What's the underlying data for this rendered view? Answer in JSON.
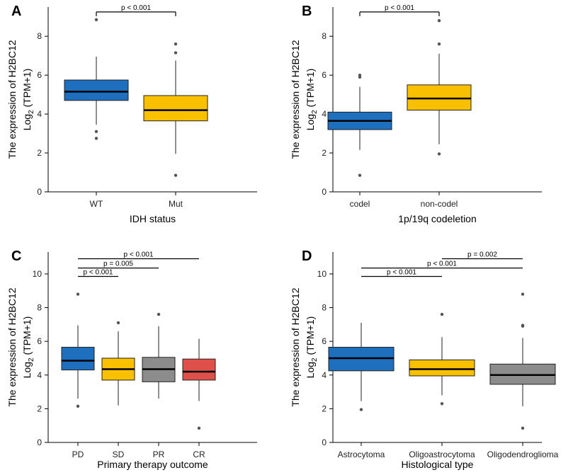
{
  "colors": {
    "blue": "#1f6fbf",
    "yellow": "#f9c000",
    "gray": "#8c8c8c",
    "red": "#e0504a",
    "axis": "#000000",
    "outlier": "#555555"
  },
  "chart_data": [
    {
      "type": "box",
      "panel": "A",
      "ylabel_line1": "The expression of H2BC12",
      "ylabel_base": "Log",
      "ylabel_sub": "2",
      "ylabel_rest": " (TPM+1)",
      "xlabel": "IDH status",
      "ylim": [
        0,
        9.5
      ],
      "yticks": [
        "0",
        "2",
        "4",
        "6",
        "8"
      ],
      "boxes": [
        {
          "name": "WT",
          "color": "blue",
          "q1": 4.7,
          "median": 5.15,
          "q3": 5.75,
          "whisker_low": 3.45,
          "whisker_high": 6.95,
          "outliers": [
            8.85,
            3.1,
            2.75
          ]
        },
        {
          "name": "Mut",
          "color": "yellow",
          "q1": 3.65,
          "median": 4.2,
          "q3": 4.95,
          "whisker_low": 1.95,
          "whisker_high": 6.75,
          "outliers": [
            7.6,
            7.15,
            0.85
          ]
        }
      ],
      "comparisons": [
        {
          "from": 0,
          "to": 1,
          "label": "p < 0.001",
          "y": 9.25
        }
      ]
    },
    {
      "type": "box",
      "panel": "B",
      "ylabel_line1": "The expression of H2BC12",
      "ylabel_base": "Log",
      "ylabel_sub": "2",
      "ylabel_rest": " (TPM+1)",
      "xlabel": "1p/19q codeletion",
      "ylim": [
        0,
        9.5
      ],
      "yticks": [
        "0",
        "2",
        "4",
        "6",
        "8"
      ],
      "boxes": [
        {
          "name": "codel",
          "color": "blue",
          "q1": 3.2,
          "median": 3.65,
          "q3": 4.1,
          "whisker_low": 2.15,
          "whisker_high": 5.4,
          "outliers": [
            6.0,
            5.9,
            0.85
          ]
        },
        {
          "name": "non-codel",
          "color": "yellow",
          "q1": 4.2,
          "median": 4.8,
          "q3": 5.5,
          "whisker_low": 2.45,
          "whisker_high": 7.1,
          "outliers": [
            8.8,
            7.6,
            1.95
          ]
        }
      ],
      "comparisons": [
        {
          "from": 0,
          "to": 1,
          "label": "p < 0.001",
          "y": 9.25
        }
      ]
    },
    {
      "type": "box",
      "panel": "C",
      "ylabel_line1": "The expression of H2BC12",
      "ylabel_base": "Log",
      "ylabel_sub": "2",
      "ylabel_rest": " (TPM+1)",
      "xlabel": "Primary therapy outcome",
      "ylim": [
        0,
        11.3
      ],
      "yticks": [
        "0",
        "2",
        "4",
        "6",
        "8",
        "10"
      ],
      "boxes": [
        {
          "name": "PD",
          "color": "blue",
          "q1": 4.3,
          "median": 4.85,
          "q3": 5.65,
          "whisker_low": 2.6,
          "whisker_high": 6.95,
          "outliers": [
            8.8,
            2.15
          ]
        },
        {
          "name": "SD",
          "color": "yellow",
          "q1": 3.7,
          "median": 4.35,
          "q3": 5.0,
          "whisker_low": 2.2,
          "whisker_high": 6.6,
          "outliers": [
            7.1
          ]
        },
        {
          "name": "PR",
          "color": "gray",
          "q1": 3.6,
          "median": 4.35,
          "q3": 5.05,
          "whisker_low": 2.6,
          "whisker_high": 6.9,
          "outliers": [
            7.6
          ]
        },
        {
          "name": "CR",
          "color": "red",
          "q1": 3.7,
          "median": 4.2,
          "q3": 4.95,
          "whisker_low": 2.45,
          "whisker_high": 6.15,
          "outliers": [
            0.85
          ]
        }
      ],
      "comparisons": [
        {
          "from": 0,
          "to": 1,
          "label": "p < 0.001",
          "y": 9.85
        },
        {
          "from": 0,
          "to": 2,
          "label": "p = 0.005",
          "y": 10.35
        },
        {
          "from": 0,
          "to": 3,
          "label": "p < 0.001",
          "y": 10.9
        }
      ]
    },
    {
      "type": "box",
      "panel": "D",
      "ylabel_line1": "The expression of H2BC12",
      "ylabel_base": "Log",
      "ylabel_sub": "2",
      "ylabel_rest": " (TPM+1)",
      "xlabel": "Histological type",
      "ylim": [
        0,
        11.3
      ],
      "yticks": [
        "0",
        "2",
        "4",
        "6",
        "8",
        "10"
      ],
      "boxes": [
        {
          "name": "Astrocytoma",
          "color": "blue",
          "q1": 4.25,
          "median": 5.0,
          "q3": 5.65,
          "whisker_low": 2.45,
          "whisker_high": 7.1,
          "outliers": [
            1.95
          ]
        },
        {
          "name": "Oligoastrocytoma",
          "color": "yellow",
          "q1": 3.95,
          "median": 4.35,
          "q3": 4.9,
          "whisker_low": 2.8,
          "whisker_high": 6.25,
          "outliers": [
            7.6,
            2.3
          ]
        },
        {
          "name": "Oligodendroglioma",
          "color": "gray",
          "q1": 3.45,
          "median": 4.0,
          "q3": 4.65,
          "whisker_low": 2.15,
          "whisker_high": 6.2,
          "outliers": [
            8.8,
            6.95,
            6.9,
            0.85
          ]
        }
      ],
      "comparisons": [
        {
          "from": 0,
          "to": 1,
          "label": "p < 0.001",
          "y": 9.85
        },
        {
          "from": 0,
          "to": 2,
          "label": "p < 0.001",
          "y": 10.35
        },
        {
          "from": 1,
          "to": 2,
          "label": "p = 0.002",
          "y": 10.9
        }
      ]
    }
  ]
}
